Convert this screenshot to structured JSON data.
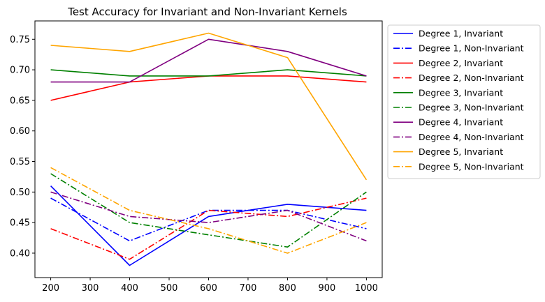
{
  "chart_data": {
    "type": "line",
    "title": "Test Accuracy for Invariant and Non-Invariant Kernels",
    "xlabel": "",
    "ylabel": "",
    "x": [
      200,
      400,
      600,
      800,
      1000
    ],
    "xlim": [
      160,
      1040
    ],
    "ylim": [
      0.36,
      0.78
    ],
    "xticks": [
      200,
      300,
      400,
      500,
      600,
      700,
      800,
      900,
      1000
    ],
    "yticks": [
      0.4,
      0.45,
      0.5,
      0.55,
      0.6,
      0.65,
      0.7,
      0.75
    ],
    "ytick_labels": [
      "0.40",
      "0.45",
      "0.50",
      "0.55",
      "0.60",
      "0.65",
      "0.70",
      "0.75"
    ],
    "grid": false,
    "legend_placement": "outside-right-top",
    "series": [
      {
        "name": "Degree 1, Invariant",
        "color": "#0000ff",
        "style": "solid",
        "values": [
          0.51,
          0.38,
          0.46,
          0.48,
          0.47
        ]
      },
      {
        "name": "Degree 1, Non-Invariant",
        "color": "#0000ff",
        "style": "dashdot",
        "values": [
          0.49,
          0.42,
          0.47,
          0.47,
          0.44
        ]
      },
      {
        "name": "Degree 2, Invariant",
        "color": "#ff0000",
        "style": "solid",
        "values": [
          0.65,
          0.68,
          0.69,
          0.69,
          0.68
        ]
      },
      {
        "name": "Degree 2, Non-Invariant",
        "color": "#ff0000",
        "style": "dashdot",
        "values": [
          0.44,
          0.39,
          0.47,
          0.46,
          0.49
        ]
      },
      {
        "name": "Degree 3, Invariant",
        "color": "#008000",
        "style": "solid",
        "values": [
          0.7,
          0.69,
          0.69,
          0.7,
          0.69
        ]
      },
      {
        "name": "Degree 3, Non-Invariant",
        "color": "#008000",
        "style": "dashdot",
        "values": [
          0.53,
          0.45,
          0.43,
          0.41,
          0.5
        ]
      },
      {
        "name": "Degree 4, Invariant",
        "color": "#800080",
        "style": "solid",
        "values": [
          0.68,
          0.68,
          0.75,
          0.73,
          0.69
        ]
      },
      {
        "name": "Degree 4, Non-Invariant",
        "color": "#800080",
        "style": "dashdot",
        "values": [
          0.5,
          0.46,
          0.45,
          0.47,
          0.42
        ]
      },
      {
        "name": "Degree 5, Invariant",
        "color": "#ffa500",
        "style": "solid",
        "values": [
          0.74,
          0.73,
          0.76,
          0.72,
          0.52
        ]
      },
      {
        "name": "Degree 5, Non-Invariant",
        "color": "#ffa500",
        "style": "dashdot",
        "values": [
          0.54,
          0.47,
          0.44,
          0.4,
          0.45
        ]
      }
    ]
  }
}
